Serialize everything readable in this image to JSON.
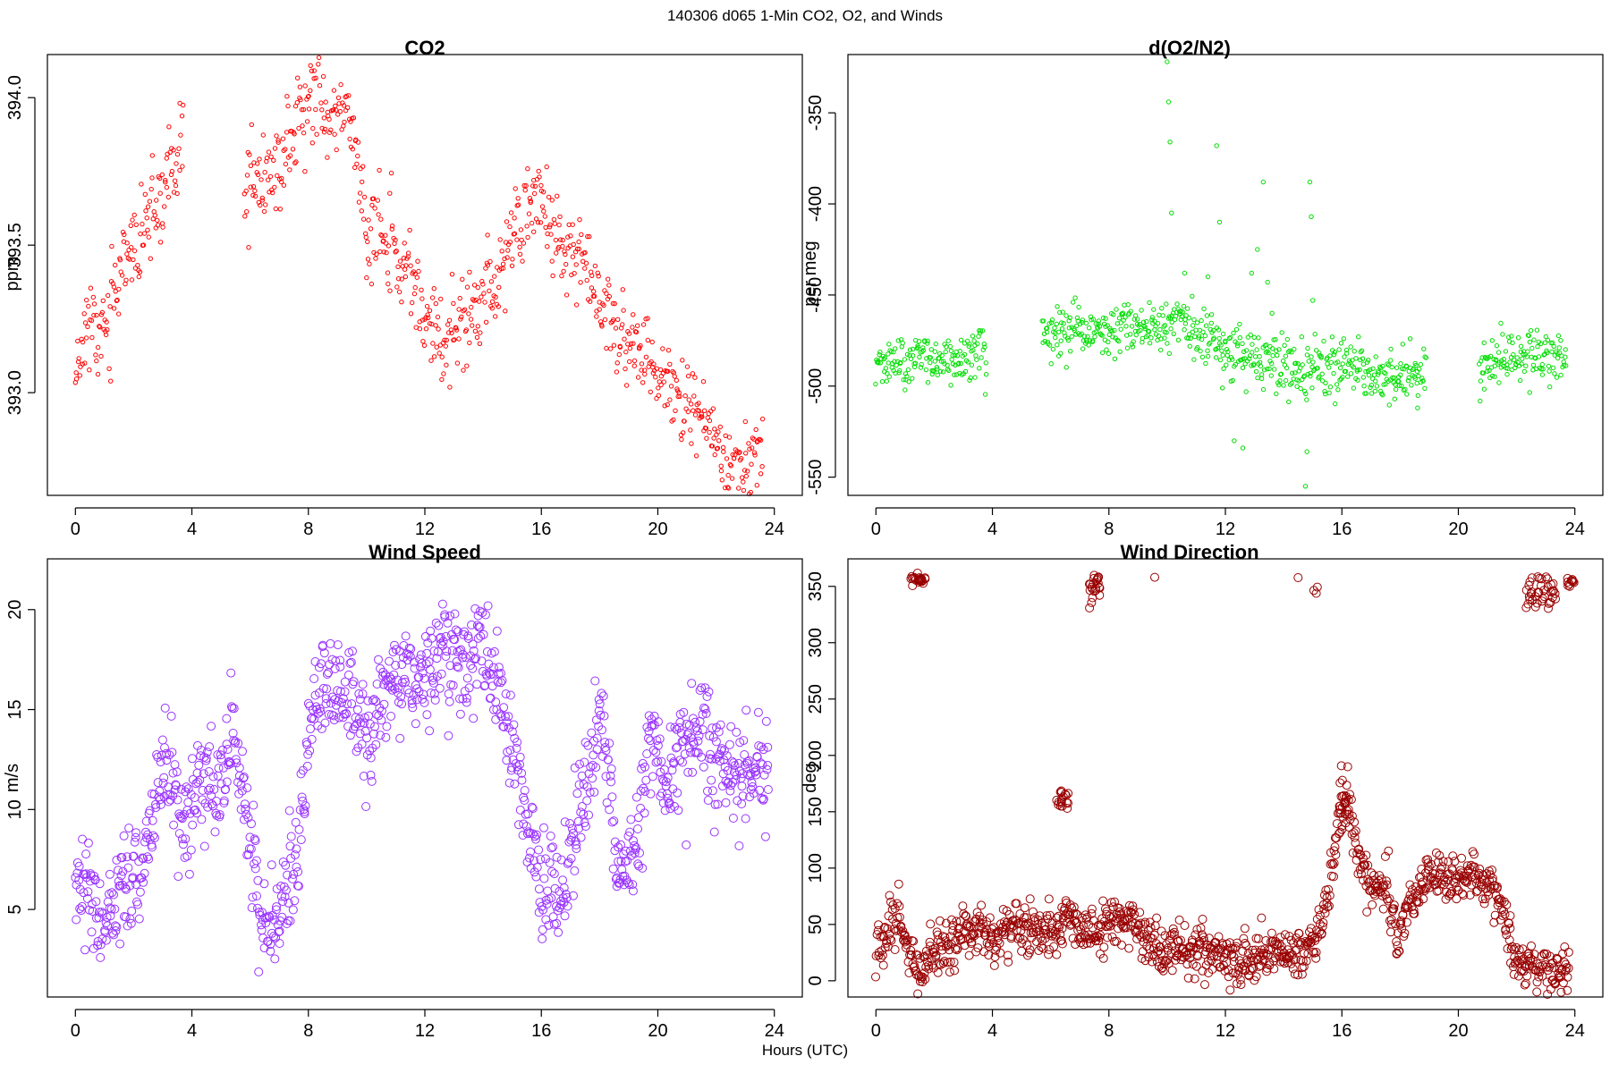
{
  "figure": {
    "suptitle": "140306   d065   1-Min CO2, O2, and Winds",
    "xlabel": "Hours (UTC)"
  },
  "chart_data": [
    {
      "type": "scatter",
      "title": "CO2",
      "xlabel": "",
      "ylabel": "ppm",
      "color": "#ff0000",
      "marker_size": "small",
      "xlim": [
        -0.9612,
        24.9612
      ],
      "ylim": [
        392.652,
        394.146
      ],
      "xticks": [
        0,
        4,
        8,
        12,
        16,
        20,
        24
      ],
      "yticks": [
        393.0,
        393.5,
        394.0
      ],
      "ytick_labels": [
        "393.0",
        "393.5",
        "394.0"
      ],
      "gaps": [
        [
          3.7,
          5.8
        ]
      ],
      "anchors": [
        [
          0.0,
          393.1
        ],
        [
          0.5,
          393.26
        ],
        [
          0.8,
          393.15
        ],
        [
          1.2,
          393.32
        ],
        [
          1.8,
          393.44
        ],
        [
          2.5,
          393.58
        ],
        [
          3.0,
          393.66
        ],
        [
          3.6,
          393.82
        ],
        [
          5.9,
          393.69
        ],
        [
          6.8,
          393.74
        ],
        [
          7.4,
          393.86
        ],
        [
          8.1,
          394.04
        ],
        [
          8.6,
          393.92
        ],
        [
          9.4,
          393.95
        ],
        [
          10.0,
          393.54
        ],
        [
          10.8,
          393.52
        ],
        [
          11.5,
          393.38
        ],
        [
          12.1,
          393.22
        ],
        [
          12.8,
          393.16
        ],
        [
          13.5,
          393.25
        ],
        [
          14.2,
          393.35
        ],
        [
          15.0,
          393.53
        ],
        [
          15.9,
          393.66
        ],
        [
          16.7,
          393.5
        ],
        [
          17.5,
          393.43
        ],
        [
          18.4,
          393.23
        ],
        [
          19.3,
          393.15
        ],
        [
          20.5,
          393.04
        ],
        [
          21.5,
          392.93
        ],
        [
          22.3,
          392.78
        ],
        [
          22.9,
          392.75
        ],
        [
          23.6,
          392.78
        ]
      ],
      "spread": 0.075,
      "n_points": 900,
      "seed": 11
    },
    {
      "type": "scatter",
      "title": "d(O2/N2)",
      "xlabel": "",
      "ylabel": "per meg",
      "color": "#00dd00",
      "marker_size": "small",
      "xlim": [
        -0.9612,
        24.9612
      ],
      "ylim": [
        -560,
        -318
      ],
      "xticks": [
        0,
        4,
        8,
        12,
        16,
        20,
        24
      ],
      "yticks": [
        -550,
        -500,
        -450,
        -400,
        -350
      ],
      "ytick_labels": [
        "-550",
        "-500",
        "-450",
        "-400",
        "-350"
      ],
      "gaps": [
        [
          3.8,
          5.7
        ],
        [
          18.9,
          20.7
        ]
      ],
      "anchors": [
        [
          0.0,
          -488
        ],
        [
          2.0,
          -485
        ],
        [
          3.8,
          -484
        ],
        [
          5.8,
          -472
        ],
        [
          7.5,
          -470
        ],
        [
          8.6,
          -466
        ],
        [
          9.5,
          -470
        ],
        [
          10.5,
          -463
        ],
        [
          11.5,
          -475
        ],
        [
          12.5,
          -482
        ],
        [
          13.5,
          -487
        ],
        [
          14.5,
          -490
        ],
        [
          16.0,
          -491
        ],
        [
          17.0,
          -493
        ],
        [
          18.0,
          -494
        ],
        [
          18.8,
          -494
        ],
        [
          20.7,
          -488
        ],
        [
          21.5,
          -486
        ],
        [
          22.5,
          -482
        ],
        [
          23.7,
          -483
        ]
      ],
      "spread": 7,
      "n_points": 1000,
      "seed": 23,
      "outliers": [
        [
          10.0,
          -322
        ],
        [
          10.05,
          -344
        ],
        [
          10.1,
          -366
        ],
        [
          10.15,
          -405
        ],
        [
          10.6,
          -438
        ],
        [
          11.7,
          -368
        ],
        [
          11.8,
          -410
        ],
        [
          11.4,
          -440
        ],
        [
          12.3,
          -530
        ],
        [
          12.6,
          -534
        ],
        [
          12.9,
          -438
        ],
        [
          13.1,
          -425
        ],
        [
          13.3,
          -388
        ],
        [
          13.45,
          -443
        ],
        [
          13.6,
          -460
        ],
        [
          14.8,
          -536
        ],
        [
          14.9,
          -388
        ],
        [
          14.95,
          -407
        ],
        [
          14.75,
          -555
        ],
        [
          15.0,
          -453
        ],
        [
          11.9,
          -501
        ],
        [
          18.6,
          -512
        ]
      ]
    },
    {
      "type": "scatter",
      "title": "Wind Speed",
      "xlabel": "",
      "ylabel": "m/s",
      "color": "#9933ff",
      "marker_size": "large",
      "xlim": [
        -0.9612,
        24.9612
      ],
      "ylim": [
        0.62,
        22.54
      ],
      "xticks": [
        0,
        4,
        8,
        12,
        16,
        20,
        24
      ],
      "yticks": [
        5,
        10,
        15,
        20
      ],
      "ytick_labels": [
        "5",
        "10",
        "15",
        "20"
      ],
      "gaps": [],
      "anchors": [
        [
          0.0,
          6.5
        ],
        [
          0.4,
          6.2
        ],
        [
          0.9,
          3.8
        ],
        [
          1.3,
          4.8
        ],
        [
          1.6,
          7.0
        ],
        [
          2.2,
          7.1
        ],
        [
          2.7,
          10.2
        ],
        [
          3.2,
          11.8
        ],
        [
          3.8,
          9.0
        ],
        [
          4.3,
          12.0
        ],
        [
          4.9,
          10.5
        ],
        [
          5.4,
          13.8
        ],
        [
          5.8,
          10.5
        ],
        [
          6.3,
          5.0
        ],
        [
          6.7,
          3.0
        ],
        [
          7.1,
          5.5
        ],
        [
          7.6,
          8.0
        ],
        [
          8.2,
          15.5
        ],
        [
          8.8,
          16.5
        ],
        [
          9.5,
          15.5
        ],
        [
          10.1,
          13.5
        ],
        [
          10.7,
          16.5
        ],
        [
          11.3,
          16.0
        ],
        [
          11.9,
          17.0
        ],
        [
          12.6,
          17.5
        ],
        [
          13.3,
          17.5
        ],
        [
          14.0,
          18.2
        ],
        [
          14.5,
          16.5
        ],
        [
          15.0,
          13.0
        ],
        [
          15.5,
          9.5
        ],
        [
          16.0,
          6.5
        ],
        [
          16.6,
          5.0
        ],
        [
          17.2,
          9.5
        ],
        [
          17.7,
          12.0
        ],
        [
          18.1,
          15.0
        ],
        [
          18.6,
          6.5
        ],
        [
          19.2,
          8.0
        ],
        [
          19.7,
          14.0
        ],
        [
          20.2,
          11.0
        ],
        [
          20.8,
          12.5
        ],
        [
          21.4,
          14.5
        ],
        [
          22.0,
          12.0
        ],
        [
          22.6,
          11.5
        ],
        [
          23.2,
          12.0
        ],
        [
          23.8,
          11.5
        ]
      ],
      "spread": 1.3,
      "n_points": 1100,
      "seed": 37
    },
    {
      "type": "scatter",
      "title": "Wind Direction",
      "xlabel": "",
      "ylabel": "deg",
      "color": "#990000",
      "marker_size": "large",
      "xlim": [
        -0.9612,
        24.9612
      ],
      "ylim": [
        -14.4,
        374.4
      ],
      "xticks": [
        0,
        4,
        8,
        12,
        16,
        20,
        24
      ],
      "yticks": [
        0,
        50,
        100,
        150,
        200,
        250,
        300,
        350
      ],
      "ytick_labels": [
        "0",
        "50",
        "100",
        "150",
        "200",
        "250",
        "300",
        "350"
      ],
      "gaps": [],
      "anchors": [
        [
          0.0,
          25
        ],
        [
          0.4,
          40
        ],
        [
          0.8,
          65
        ],
        [
          1.1,
          30
        ],
        [
          1.4,
          5
        ],
        [
          1.8,
          20
        ],
        [
          2.4,
          30
        ],
        [
          3.0,
          45
        ],
        [
          3.6,
          40
        ],
        [
          4.0,
          35
        ],
        [
          4.6,
          45
        ],
        [
          5.2,
          50
        ],
        [
          5.8,
          45
        ],
        [
          6.2,
          40
        ],
        [
          6.5,
          60
        ],
        [
          7.0,
          45
        ],
        [
          7.6,
          45
        ],
        [
          8.2,
          50
        ],
        [
          8.8,
          55
        ],
        [
          9.4,
          35
        ],
        [
          10.0,
          25
        ],
        [
          10.6,
          35
        ],
        [
          11.2,
          25
        ],
        [
          11.8,
          30
        ],
        [
          12.4,
          15
        ],
        [
          13.0,
          25
        ],
        [
          13.6,
          25
        ],
        [
          14.2,
          25
        ],
        [
          14.8,
          30
        ],
        [
          15.2,
          40
        ],
        [
          15.6,
          90
        ],
        [
          15.9,
          135
        ],
        [
          16.2,
          155
        ],
        [
          16.6,
          110
        ],
        [
          17.0,
          80
        ],
        [
          17.5,
          85
        ],
        [
          17.9,
          40
        ],
        [
          18.3,
          70
        ],
        [
          18.8,
          85
        ],
        [
          19.4,
          95
        ],
        [
          20.0,
          85
        ],
        [
          20.5,
          90
        ],
        [
          21.1,
          85
        ],
        [
          21.6,
          60
        ],
        [
          21.9,
          25
        ],
        [
          22.2,
          10
        ],
        [
          22.8,
          5
        ],
        [
          23.4,
          5
        ],
        [
          23.8,
          8
        ]
      ],
      "spread": 11,
      "n_points": 1150,
      "seed": 51,
      "clusters": [
        [
          1.45,
          356,
          0.25,
          3,
          24
        ],
        [
          7.5,
          349,
          0.2,
          8,
          22
        ],
        [
          6.4,
          160,
          0.2,
          6,
          18
        ],
        [
          16.1,
          168,
          0.18,
          10,
          14
        ],
        [
          22.8,
          342,
          0.55,
          9,
          40
        ],
        [
          23.85,
          354,
          0.12,
          3,
          10
        ],
        [
          9.6,
          358,
          0.04,
          1,
          1
        ],
        [
          14.5,
          357,
          0.04,
          1,
          1
        ],
        [
          15.1,
          347,
          0.08,
          2,
          3
        ]
      ]
    }
  ]
}
